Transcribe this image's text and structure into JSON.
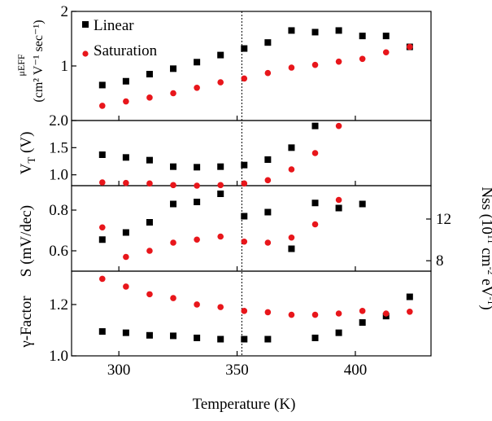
{
  "colors": {
    "linear": "#000000",
    "saturation": "#e8161b",
    "axis": "#000000",
    "guide": "#000000"
  },
  "chart_data": {
    "type": "scatter",
    "shared_x": {
      "label": "Temperature (K)",
      "lim": [
        280,
        432
      ],
      "ticks": [
        300,
        350,
        400
      ],
      "tick_labels": [
        "300",
        "350",
        "400"
      ]
    },
    "guide_line": {
      "x": 352,
      "style": "dotted"
    },
    "legend": {
      "position": "top-left",
      "entries": [
        "Linear",
        "Saturation"
      ]
    },
    "panels": [
      {
        "id": "mobility",
        "ylabel_top": "μEFF",
        "ylabel": "(cm² V⁻¹ sec⁻¹)",
        "ylim": [
          0,
          2
        ],
        "yticks": [
          1,
          2
        ],
        "ytick_labels": [
          "1",
          "2"
        ],
        "series": [
          {
            "name": "Linear",
            "marker": "square",
            "x": [
              293,
              303,
              313,
              323,
              333,
              343,
              353,
              363,
              373,
              383,
              393,
              403,
              413,
              423
            ],
            "y": [
              0.65,
              0.72,
              0.85,
              0.95,
              1.07,
              1.2,
              1.32,
              1.43,
              1.65,
              1.62,
              1.65,
              1.55,
              1.55,
              1.35
            ]
          },
          {
            "name": "Saturation",
            "marker": "circle",
            "x": [
              293,
              303,
              313,
              323,
              333,
              343,
              353,
              363,
              373,
              383,
              393,
              403,
              413,
              423
            ],
            "y": [
              0.27,
              0.35,
              0.42,
              0.5,
              0.6,
              0.7,
              0.77,
              0.87,
              0.97,
              1.02,
              1.08,
              1.13,
              1.25,
              1.35
            ]
          }
        ]
      },
      {
        "id": "threshold",
        "ylabel": "VT (V)",
        "ylabel_main": "V",
        "ylabel_sub": "T",
        "ylabel_rest": " (V)",
        "ylim": [
          0.8,
          2.0
        ],
        "yticks": [
          1.0,
          1.5,
          2.0
        ],
        "ytick_labels": [
          "1.0",
          "1.5",
          "2.0"
        ],
        "series": [
          {
            "name": "Linear",
            "marker": "square",
            "x": [
              293,
              303,
              313,
              323,
              333,
              343,
              353,
              363,
              373,
              383
            ],
            "y": [
              1.37,
              1.32,
              1.27,
              1.15,
              1.14,
              1.15,
              1.18,
              1.28,
              1.5,
              1.9
            ]
          },
          {
            "name": "Saturation",
            "marker": "circle",
            "x": [
              293,
              303,
              313,
              323,
              333,
              343,
              353,
              363,
              373,
              383,
              393
            ],
            "y": [
              0.86,
              0.85,
              0.84,
              0.81,
              0.8,
              0.81,
              0.84,
              0.9,
              1.1,
              1.4,
              1.9
            ]
          }
        ]
      },
      {
        "id": "subthreshold",
        "ylabel": "S (mV/dec)",
        "ylim": [
          0.5,
          0.92
        ],
        "yticks": [
          0.6,
          0.8
        ],
        "ytick_labels": [
          "0.6",
          "0.8"
        ],
        "right_axis": {
          "label": "Nss (10¹¹ cm⁻² eV⁻¹)",
          "label_main": "Nss (10",
          "label_sup1": "11",
          "label_mid": " cm",
          "label_sup2": "-2",
          "label_mid2": " eV",
          "label_sup3": "-1",
          "label_end": ")",
          "ylim": [
            7,
            15.2
          ],
          "yticks": [
            8,
            12
          ],
          "ytick_labels": [
            "8",
            "12"
          ]
        },
        "series": [
          {
            "name": "Linear",
            "marker": "square",
            "x": [
              293,
              303,
              313,
              323,
              333,
              343,
              353,
              363,
              373,
              383,
              393,
              403
            ],
            "y": [
              0.655,
              0.69,
              0.74,
              0.83,
              0.84,
              0.88,
              0.77,
              0.79,
              0.61,
              0.835,
              0.81,
              0.83
            ]
          },
          {
            "name": "Saturation",
            "marker": "circle",
            "x": [
              293,
              303,
              313,
              323,
              333,
              343,
              353,
              363,
              373,
              383,
              393
            ],
            "y": [
              0.715,
              0.57,
              0.6,
              0.64,
              0.655,
              0.67,
              0.645,
              0.64,
              0.665,
              0.73,
              0.85
            ]
          }
        ]
      },
      {
        "id": "gamma",
        "ylabel": "γ-Factor",
        "ylim": [
          1.0,
          1.33
        ],
        "yticks": [
          1.0,
          1.2
        ],
        "ytick_labels": [
          "1.0",
          "1.2"
        ],
        "series": [
          {
            "name": "Linear",
            "marker": "square",
            "x": [
              293,
              303,
              313,
              323,
              333,
              343,
              353,
              363,
              383,
              393,
              403,
              413,
              423
            ],
            "y": [
              1.095,
              1.09,
              1.08,
              1.078,
              1.07,
              1.065,
              1.065,
              1.065,
              1.07,
              1.09,
              1.13,
              1.155,
              1.23
            ]
          },
          {
            "name": "Saturation",
            "marker": "circle",
            "x": [
              293,
              303,
              313,
              323,
              333,
              343,
              353,
              363,
              373,
              383,
              393,
              403,
              413,
              423
            ],
            "y": [
              1.3,
              1.27,
              1.24,
              1.225,
              1.2,
              1.19,
              1.175,
              1.17,
              1.16,
              1.16,
              1.165,
              1.175,
              1.165,
              1.172
            ]
          }
        ]
      }
    ]
  }
}
